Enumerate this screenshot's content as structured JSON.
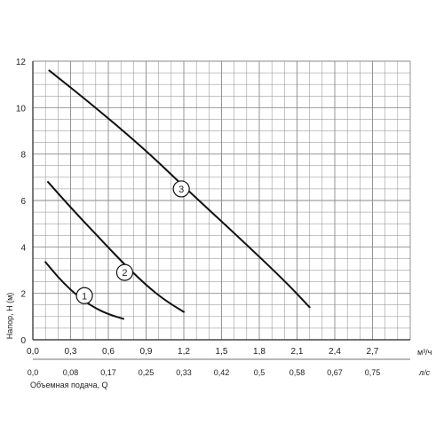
{
  "chart_data": {
    "type": "line",
    "ylabel": "Напор, Н (м)",
    "xlabel": "Объемная подача, Q",
    "x_unit_top": "м³/ч",
    "x_unit_bottom": "л/с",
    "xlim": [
      0,
      3.0
    ],
    "ylim": [
      0,
      12
    ],
    "grid": true,
    "x_ticks_top": [
      "0,0",
      "0,3",
      "0,6",
      "0,9",
      "1,2",
      "1,5",
      "1,8",
      "2,1",
      "2,4",
      "2,7"
    ],
    "x_tick_values_top": [
      0,
      0.3,
      0.6,
      0.9,
      1.2,
      1.5,
      1.8,
      2.1,
      2.4,
      2.7
    ],
    "x_ticks_bottom": [
      "0,0",
      "0,08",
      "0,17",
      "0,25",
      "0,33",
      "0,42",
      "0,5",
      "0,58",
      "0,67",
      "0,75"
    ],
    "y_ticks": [
      "0",
      "2",
      "4",
      "6",
      "8",
      "10",
      "12"
    ],
    "y_tick_values": [
      0,
      2,
      4,
      6,
      8,
      10,
      12
    ],
    "series": [
      {
        "name": "1",
        "points": [
          [
            0.1,
            3.35
          ],
          [
            0.2,
            2.7
          ],
          [
            0.3,
            2.15
          ],
          [
            0.4,
            1.7
          ],
          [
            0.5,
            1.35
          ],
          [
            0.6,
            1.1
          ],
          [
            0.72,
            0.9
          ]
        ],
        "label_at": [
          0.41,
          1.9
        ]
      },
      {
        "name": "2",
        "points": [
          [
            0.12,
            6.8
          ],
          [
            0.3,
            5.7
          ],
          [
            0.5,
            4.55
          ],
          [
            0.7,
            3.4
          ],
          [
            0.9,
            2.35
          ],
          [
            1.05,
            1.7
          ],
          [
            1.2,
            1.2
          ]
        ],
        "label_at": [
          0.73,
          2.9
        ]
      },
      {
        "name": "3",
        "points": [
          [
            0.13,
            11.6
          ],
          [
            0.5,
            10.0
          ],
          [
            0.9,
            8.15
          ],
          [
            1.2,
            6.6
          ],
          [
            1.6,
            4.6
          ],
          [
            2.0,
            2.55
          ],
          [
            2.2,
            1.4
          ]
        ],
        "label_at": [
          1.18,
          6.5
        ]
      }
    ],
    "line_color": "#111111",
    "grid_color": "#8a8a8a"
  }
}
